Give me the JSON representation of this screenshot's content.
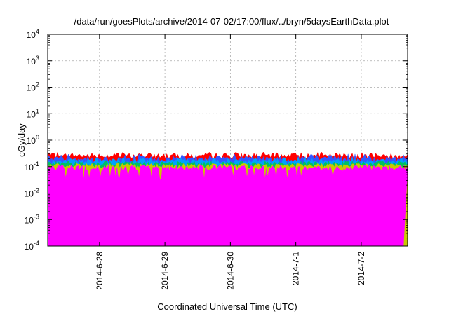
{
  "chart_data": {
    "type": "area",
    "title": "/data/run/goesPlots/archive/2014-07-02/17:00/flux/../bryn/5daysEarthData.plot",
    "xlabel": "Coordinated Universal Time (UTC)",
    "ylabel": "cGy/day",
    "y_scale": "log",
    "ylim": [
      0.0001,
      10000
    ],
    "y_ticks": [
      {
        "value": 0.0001,
        "base": "10",
        "exp": "-4"
      },
      {
        "value": 0.001,
        "base": "10",
        "exp": "-3"
      },
      {
        "value": 0.01,
        "base": "10",
        "exp": "-2"
      },
      {
        "value": 0.1,
        "base": "10",
        "exp": "-1"
      },
      {
        "value": 1,
        "base": "10",
        "exp": "0"
      },
      {
        "value": 10,
        "base": "10",
        "exp": "1"
      },
      {
        "value": 100,
        "base": "10",
        "exp": "2"
      },
      {
        "value": 1000,
        "base": "10",
        "exp": "3"
      },
      {
        "value": 10000,
        "base": "10",
        "exp": "4"
      }
    ],
    "xlim": [
      "2014-06-27 05:00",
      "2014-07-02 17:00"
    ],
    "x_ticks": [
      "2014-6-28",
      "2014-6-29",
      "2014-6-30",
      "2014-7-1",
      "2014-7-2"
    ],
    "grid": true,
    "legend": "none",
    "series": [
      {
        "color": "#ff0000",
        "typical_value": 0.26,
        "min_value": 0.2,
        "max_value": 0.35
      },
      {
        "color": "#3355ff",
        "typical_value": 0.2,
        "min_value": 0.13,
        "max_value": 0.3
      },
      {
        "color": "#00a0ff",
        "typical_value": 0.16,
        "min_value": 0.11,
        "max_value": 0.22
      },
      {
        "color": "#00c060",
        "typical_value": 0.13,
        "min_value": 0.1,
        "max_value": 0.16
      },
      {
        "color": "#c8c800",
        "typical_value": 0.11,
        "min_value": 0.09,
        "max_value": 0.13
      },
      {
        "color": "#ff00ff",
        "typical_value": 0.09,
        "min_value": 0.03,
        "max_value": 0.11,
        "end_drop_to": 0.0001
      }
    ]
  }
}
